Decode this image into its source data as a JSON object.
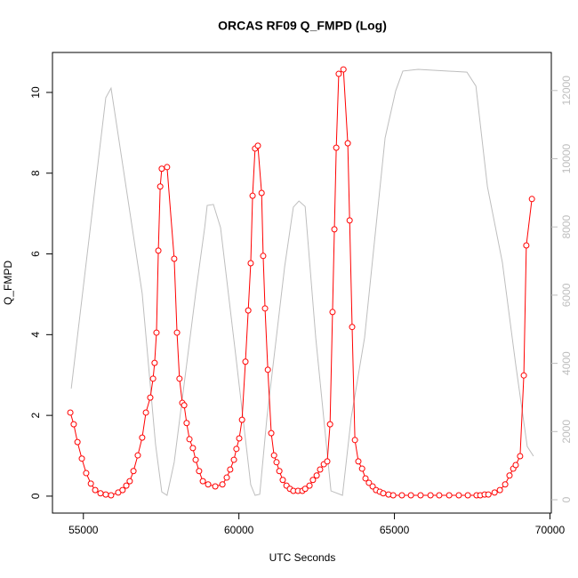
{
  "chart_data": {
    "type": "line",
    "title": "ORCAS RF09 Q_FMPD (Log)",
    "x_label": "UTC Seconds",
    "y_label": "Q_FMPD",
    "xlim": [
      54006,
      70044
    ],
    "xticks": [
      55000,
      60000,
      65000,
      70000
    ],
    "ylim": [
      -0.42,
      10.99
    ],
    "yticks": [
      0,
      2,
      4,
      6,
      8,
      10
    ],
    "y2lim": [
      -391,
      13116
    ],
    "y2ticks": [
      0,
      2000,
      4000,
      6000,
      8000,
      10000,
      12000
    ],
    "y2_color": "#bebebe",
    "series": [
      {
        "color": "#bebebe",
        "axis": "y2",
        "markers": false,
        "x": [
          54610,
          55720,
          55890,
          56120,
          56890,
          57320,
          57520,
          57690,
          57920,
          58210,
          58610,
          58900,
          58980,
          59180,
          59410,
          59900,
          60380,
          60520,
          60670,
          60900,
          61470,
          61750,
          61930,
          62130,
          62470,
          62960,
          63330,
          63610,
          64040,
          64700,
          65040,
          65270,
          65760,
          67330,
          67620,
          67990,
          68470,
          68900,
          69270,
          69470
        ],
        "values": [
          3260,
          11790,
          12070,
          10690,
          6050,
          1620,
          230,
          130,
          1100,
          3180,
          6050,
          7980,
          8630,
          8660,
          7980,
          4220,
          440,
          130,
          160,
          2400,
          6830,
          8580,
          8760,
          8600,
          4750,
          260,
          130,
          2400,
          4750,
          10610,
          11990,
          12570,
          12620,
          12540,
          12130,
          9180,
          6960,
          3960,
          1560,
          1280
        ]
      },
      {
        "color": "#ff0000",
        "axis": "y",
        "markers": true,
        "x": [
          54580,
          54690,
          54810,
          54950,
          55090,
          55240,
          55380,
          55550,
          55720,
          55890,
          56120,
          56260,
          56380,
          56490,
          56610,
          56750,
          56890,
          57010,
          57150,
          57240,
          57290,
          57350,
          57410,
          57470,
          57520,
          57690,
          57920,
          58010,
          58090,
          58180,
          58240,
          58320,
          58410,
          58520,
          58610,
          58720,
          58840,
          59010,
          59240,
          59470,
          59610,
          59720,
          59840,
          59920,
          60010,
          60100,
          60210,
          60300,
          60380,
          60440,
          60520,
          60610,
          60730,
          60780,
          60840,
          60930,
          61040,
          61130,
          61210,
          61300,
          61410,
          61530,
          61640,
          61750,
          61900,
          62040,
          62130,
          62270,
          62380,
          62500,
          62610,
          62730,
          62840,
          62930,
          63010,
          63070,
          63130,
          63210,
          63360,
          63500,
          63560,
          63640,
          63730,
          63840,
          63960,
          64070,
          64180,
          64300,
          64410,
          64530,
          64640,
          64810,
          64960,
          65240,
          65530,
          65840,
          66160,
          66440,
          66760,
          67070,
          67360,
          67640,
          67760,
          67900,
          68020,
          68220,
          68390,
          68560,
          68700,
          68820,
          68900,
          69040,
          69160,
          69240,
          69420
        ],
        "values": [
          2.07,
          1.78,
          1.34,
          0.93,
          0.57,
          0.31,
          0.15,
          0.07,
          0.04,
          0.02,
          0.09,
          0.15,
          0.26,
          0.37,
          0.62,
          1.01,
          1.45,
          2.07,
          2.44,
          2.91,
          3.3,
          4.05,
          6.08,
          7.67,
          8.11,
          8.15,
          5.88,
          4.05,
          2.91,
          2.31,
          2.25,
          1.81,
          1.41,
          1.19,
          0.9,
          0.62,
          0.37,
          0.29,
          0.24,
          0.29,
          0.46,
          0.66,
          0.9,
          1.17,
          1.43,
          1.89,
          3.33,
          4.6,
          5.77,
          7.44,
          8.61,
          8.68,
          7.51,
          5.95,
          4.65,
          3.13,
          1.56,
          1.01,
          0.84,
          0.62,
          0.4,
          0.26,
          0.18,
          0.13,
          0.13,
          0.13,
          0.18,
          0.26,
          0.4,
          0.51,
          0.66,
          0.79,
          0.86,
          1.78,
          4.56,
          6.61,
          8.63,
          10.46,
          10.57,
          8.74,
          6.83,
          4.19,
          1.39,
          0.86,
          0.68,
          0.44,
          0.33,
          0.24,
          0.15,
          0.11,
          0.07,
          0.04,
          0.02,
          0.02,
          0.02,
          0.02,
          0.02,
          0.02,
          0.02,
          0.02,
          0.02,
          0.02,
          0.02,
          0.04,
          0.04,
          0.09,
          0.15,
          0.29,
          0.51,
          0.68,
          0.77,
          0.99,
          2.99,
          6.21,
          7.36
        ]
      }
    ]
  }
}
